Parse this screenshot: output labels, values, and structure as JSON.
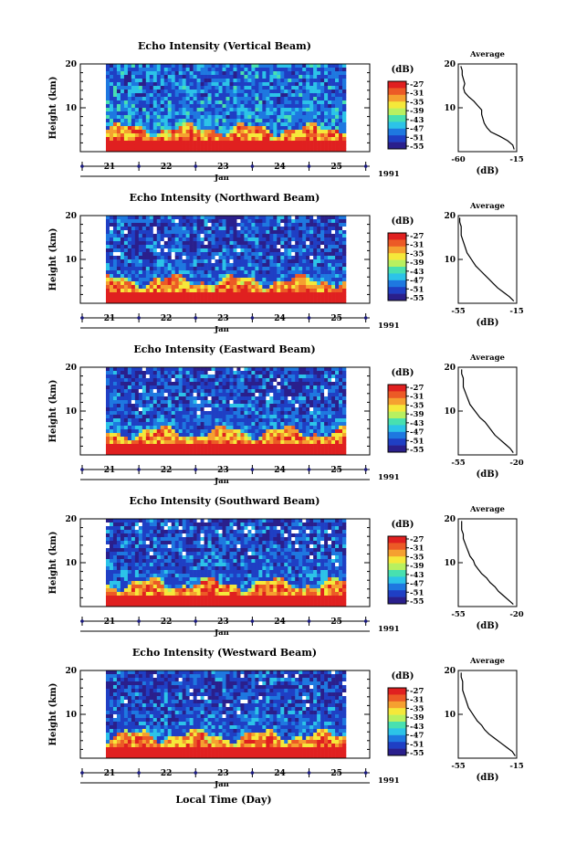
{
  "panels": [
    {
      "title": "Echo Intensity (Vertical Beam)",
      "avg_title": "Average",
      "avg_xticks": [
        "-60",
        "-15"
      ],
      "avg_xlim": [
        -60,
        -15
      ],
      "avg_profile_db": [
        -17,
        -18,
        -22,
        -28,
        -35,
        -38,
        -40,
        -41,
        -42,
        -42,
        -45,
        -48,
        -52,
        -55,
        -56,
        -55,
        -56,
        -57,
        -57,
        -58
      ]
    },
    {
      "title": "Echo Intensity (Northward Beam)",
      "avg_title": "Average",
      "avg_xticks": [
        "-55",
        "-15"
      ],
      "avg_xlim": [
        -55,
        -15
      ],
      "avg_profile_db": [
        -17,
        -20,
        -24,
        -28,
        -31,
        -34,
        -37,
        -40,
        -43,
        -45,
        -47,
        -49,
        -50,
        -51,
        -52,
        -53,
        -53,
        -53,
        -54,
        -54
      ]
    },
    {
      "title": "Echo Intensity (Eastward Beam)",
      "avg_title": "Average",
      "avg_xticks": [
        "-55",
        "-20"
      ],
      "avg_xlim": [
        -55,
        -20
      ],
      "avg_profile_db": [
        -22,
        -24,
        -27,
        -30,
        -33,
        -35,
        -37,
        -39,
        -42,
        -44,
        -46,
        -48,
        -49,
        -50,
        -51,
        -52,
        -52,
        -52,
        -53,
        -53
      ]
    },
    {
      "title": "Echo Intensity (Southward Beam)",
      "avg_title": "Average",
      "avg_xticks": [
        "-55",
        "-20"
      ],
      "avg_xlim": [
        -55,
        -20
      ],
      "avg_profile_db": [
        -22,
        -25,
        -28,
        -31,
        -33,
        -36,
        -38,
        -41,
        -43,
        -45,
        -46,
        -48,
        -49,
        -50,
        -51,
        -52,
        -52,
        -53,
        -53,
        -53
      ]
    },
    {
      "title": "Echo Intensity (Westward Beam)",
      "avg_title": "Average",
      "avg_xticks": [
        "-55",
        "-15"
      ],
      "avg_xlim": [
        -55,
        -15
      ],
      "avg_profile_db": [
        -16,
        -18,
        -22,
        -26,
        -30,
        -34,
        -37,
        -39,
        -42,
        -44,
        -46,
        -48,
        -49,
        -50,
        -51,
        -52,
        -52,
        -52,
        -53,
        -53
      ]
    }
  ],
  "shared": {
    "ylabel": "Height (km)",
    "yticks": [
      "10",
      "20"
    ],
    "ylim_km": [
      0,
      20
    ],
    "cb_unit": "(dB)",
    "cb_levels": [
      "-27",
      "-31",
      "-35",
      "-39",
      "-43",
      "-47",
      "-51",
      "-55"
    ],
    "day_ticks": [
      "21",
      "22",
      "23",
      "24",
      "25"
    ],
    "month": "Jan",
    "year": "1991",
    "avg_xlabel": "(dB)",
    "bottom_xlabel": "Local Time (Day)"
  },
  "colors": {
    "colormap": [
      "#2a1f8c",
      "#1f3fc4",
      "#1e78e0",
      "#2cc3e8",
      "#48e0b0",
      "#b8f060",
      "#f5e83a",
      "#f5a030",
      "#ec5a26",
      "#e02020"
    ],
    "missing": "#ffffff",
    "axis": "#000000",
    "day_marker": "#1a1a80"
  },
  "chart_data": [
    {
      "type": "heatmap",
      "title": "Echo Intensity (Vertical Beam)",
      "ylabel": "Height (km)",
      "ylim": [
        0,
        20
      ],
      "x_ticks": [
        "21",
        "22",
        "23",
        "24",
        "25"
      ],
      "x_sublabel": "Jan",
      "year": "1991",
      "colorbar_label": "(dB)",
      "colorbar_ticks": [
        -27,
        -31,
        -35,
        -39,
        -43,
        -47,
        -51,
        -55
      ]
    },
    {
      "type": "heatmap",
      "title": "Echo Intensity (Northward Beam)",
      "ylabel": "Height (km)",
      "ylim": [
        0,
        20
      ],
      "x_ticks": [
        "21",
        "22",
        "23",
        "24",
        "25"
      ],
      "colorbar_ticks": [
        -27,
        -31,
        -35,
        -39,
        -43,
        -47,
        -51,
        -55
      ]
    },
    {
      "type": "heatmap",
      "title": "Echo Intensity (Eastward Beam)",
      "ylabel": "Height (km)",
      "ylim": [
        0,
        20
      ],
      "x_ticks": [
        "21",
        "22",
        "23",
        "24",
        "25"
      ],
      "colorbar_ticks": [
        -27,
        -31,
        -35,
        -39,
        -43,
        -47,
        -51,
        -55
      ]
    },
    {
      "type": "heatmap",
      "title": "Echo Intensity (Southward Beam)",
      "ylabel": "Height (km)",
      "ylim": [
        0,
        20
      ],
      "x_ticks": [
        "21",
        "22",
        "23",
        "24",
        "25"
      ],
      "colorbar_ticks": [
        -27,
        -31,
        -35,
        -39,
        -43,
        -47,
        -51,
        -55
      ]
    },
    {
      "type": "heatmap",
      "title": "Echo Intensity (Westward Beam)",
      "ylabel": "Height (km)",
      "ylim": [
        0,
        20
      ],
      "x_ticks": [
        "21",
        "22",
        "23",
        "24",
        "25"
      ],
      "xlabel": "Local Time (Day)",
      "colorbar_ticks": [
        -27,
        -31,
        -35,
        -39,
        -43,
        -47,
        -51,
        -55
      ]
    }
  ]
}
